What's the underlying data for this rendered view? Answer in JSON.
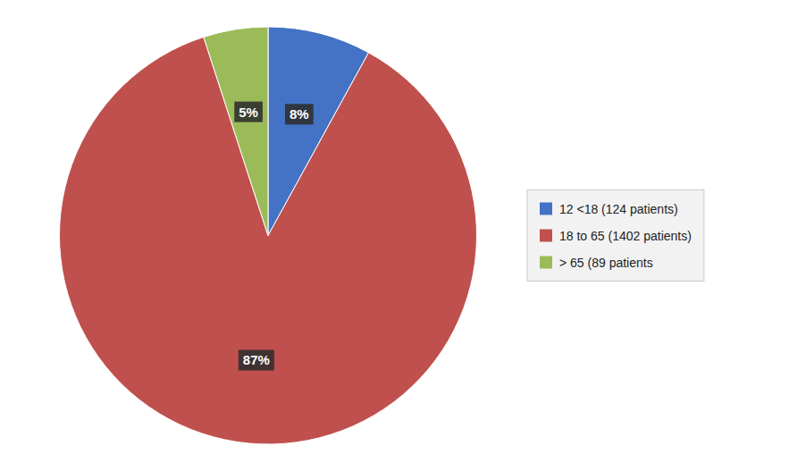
{
  "chart_data": {
    "type": "pie",
    "categories": [
      "12 <18 (124 patients)",
      "18 to 65 (1402 patients)",
      "> 65 (89 patients"
    ],
    "values": [
      8,
      87,
      5
    ],
    "value_labels": [
      "8%",
      "87%",
      "5%"
    ],
    "colors": [
      "#4472C4",
      "#C0504D",
      "#9BBB59"
    ],
    "data_labels": true,
    "legend": "right"
  }
}
